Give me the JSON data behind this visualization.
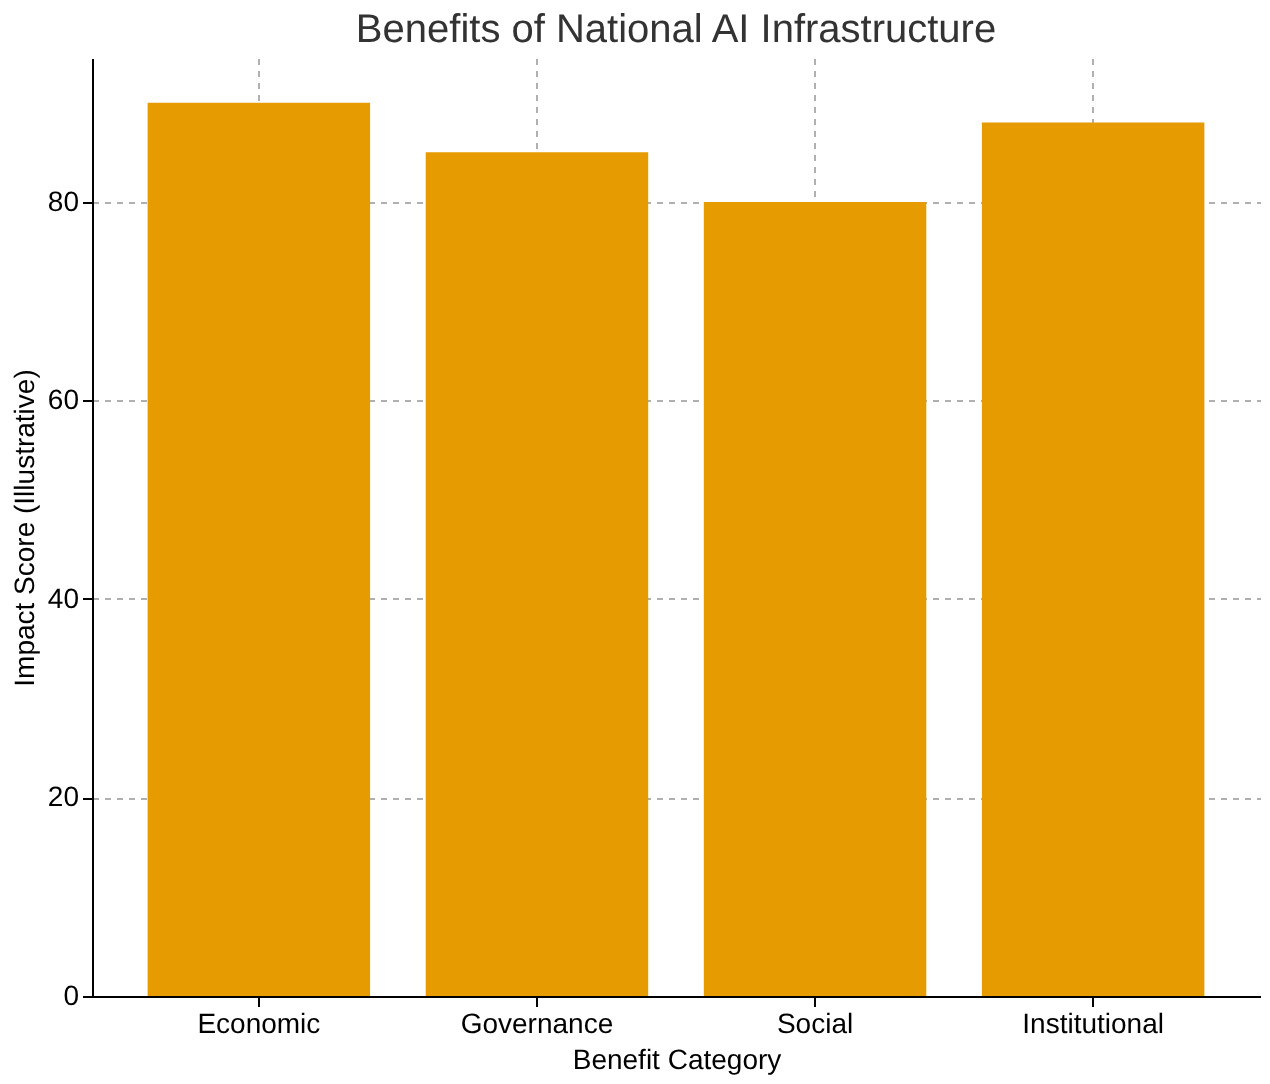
{
  "chart_data": {
    "type": "bar",
    "title": "Benefits of National AI Infrastructure",
    "xlabel": "Benefit Category",
    "ylabel": "Impact Score (Illustrative)",
    "categories": [
      "Economic",
      "Governance",
      "Social",
      "Institutional"
    ],
    "values": [
      90,
      85,
      80,
      88
    ],
    "color": "#e69b00",
    "ylim": [
      0,
      94.5
    ],
    "yticks": [
      0,
      20,
      40,
      60,
      80
    ],
    "grid": true
  }
}
